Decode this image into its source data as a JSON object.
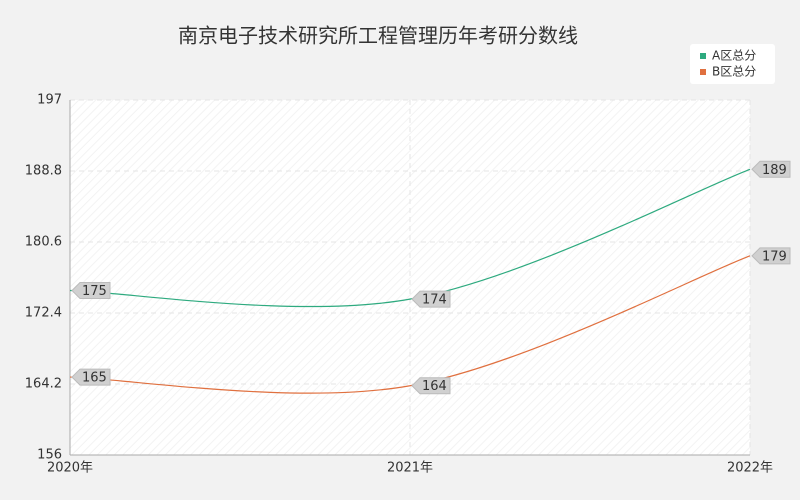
{
  "chart_data": {
    "type": "line",
    "title": "南京电子技术研究所工程管理历年考研分数线",
    "categories": [
      "2020年",
      "2021年",
      "2022年"
    ],
    "series": [
      {
        "name": "A区总分",
        "color": "#2eaa7f",
        "values": [
          175,
          174,
          189
        ]
      },
      {
        "name": "B区总分",
        "color": "#e0703f",
        "values": [
          165,
          164,
          179
        ]
      }
    ],
    "ylim": [
      156,
      197
    ],
    "yticks": [
      156,
      164.2,
      172.4,
      180.6,
      188.8,
      197
    ],
    "grid": true,
    "smooth": true,
    "legend": "top-right"
  }
}
